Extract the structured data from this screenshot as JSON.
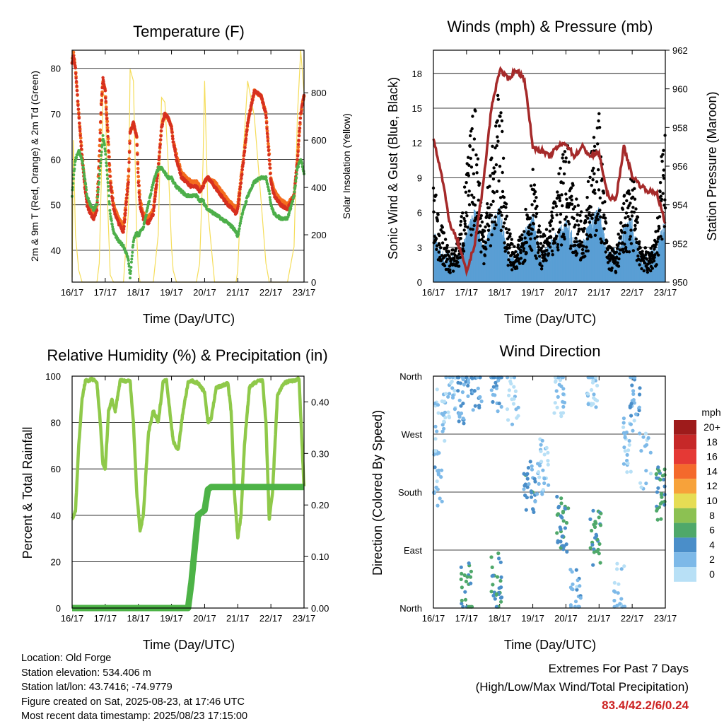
{
  "panels": {
    "temperature": {
      "title": "Temperature (F)",
      "ylabel_left": "2m & 9m T (Red, Orange) & 2m Td (Green)",
      "ylabel_right": "Solar Insolation (Yellow)",
      "xlabel": "Time (Day/UTC)"
    },
    "winds": {
      "title": "Winds (mph) & Pressure (mb)",
      "ylabel_left": "Sonic Wind & Gust (Blue, Black)",
      "ylabel_right": "Station Pressure (Maroon)",
      "xlabel": "Time (Day/UTC)"
    },
    "humidity": {
      "title": "Relative Humidity (%) & Precipitation (in)",
      "ylabel_left": "Percent & Total Rainfall",
      "xlabel": "Time (Day/UTC)"
    },
    "direction": {
      "title": "Wind Direction",
      "ylabel_left": "Direction (Colored By Speed)",
      "xlabel": "Time (Day/UTC)",
      "legend_title": "mph"
    }
  },
  "info": {
    "location": "Location: Old Forge",
    "elevation": "Station elevation: 534.406 m",
    "latlon": "Station lat/lon: 43.7416; -74.9779",
    "created": "Figure created on Sat, 2025-08-23, at 17:46 UTC",
    "recent": "Most recent data timestamp: 2025/08/23 17:15:00"
  },
  "extremes": {
    "line1": "Extremes For Past 7 Days",
    "line2": "(High/Low/Max Wind/Total Precipitation)",
    "values": "83.4/42.2/6/0.24"
  },
  "colors": {
    "temp2m": "#d7301f",
    "temp9m": "#f46d1e",
    "dewpoint": "#4daf4a",
    "solar": "#f5dd5a",
    "wind": "#5a9fd4",
    "gust": "#000000",
    "pressure": "#a52a2a",
    "rh": "#8fc94a",
    "precip": "#4db347"
  },
  "chart_data": [
    {
      "type": "line",
      "name": "temperature",
      "title": "Temperature (F)",
      "xlabel": "Time (Day/UTC)",
      "ylabel": "2m & 9m T (Red, Orange) & 2m Td (Green)",
      "y2label": "Solar Insolation (Yellow)",
      "ylim": [
        33,
        84
      ],
      "y2lim": [
        0,
        980
      ],
      "yticks": [
        40,
        50,
        60,
        70,
        80
      ],
      "y2ticks": [
        0,
        200,
        400,
        600,
        800
      ],
      "xticks": [
        "16/17",
        "17/17",
        "18/17",
        "19/17",
        "20/17",
        "21/17",
        "22/17",
        "23/17"
      ],
      "x": [
        0,
        0.04,
        0.1,
        0.2,
        0.3,
        0.38,
        0.45,
        0.55,
        0.65,
        0.75,
        0.82,
        0.88,
        0.93,
        1.0,
        1.08,
        1.15,
        1.25,
        1.4,
        1.55,
        1.7,
        1.75,
        1.85,
        1.95,
        2.0,
        2.05,
        2.15,
        2.3,
        2.45,
        2.6,
        2.7,
        2.8,
        2.9,
        3.0,
        3.05,
        3.15,
        3.3,
        3.45,
        3.6,
        3.75,
        3.85,
        3.95,
        4.0,
        4.1,
        4.3,
        4.5,
        4.7,
        4.85,
        4.95,
        5.0,
        5.1,
        5.3,
        5.5,
        5.7,
        5.85,
        5.95,
        6.0,
        6.1,
        6.3,
        6.5,
        6.7,
        6.8,
        6.9,
        7.0
      ],
      "series": [
        {
          "name": "2m T",
          "values": [
            81,
            83,
            80,
            70,
            60,
            54,
            50,
            48,
            47,
            49,
            60,
            72,
            78,
            75,
            65,
            55,
            49,
            46,
            44,
            55,
            66,
            68,
            65,
            55,
            50,
            47,
            46,
            48,
            58,
            67,
            70,
            69,
            67,
            64,
            60,
            56,
            55,
            54,
            54,
            53,
            54,
            55,
            56,
            54,
            52,
            50,
            49,
            48,
            49,
            55,
            68,
            75,
            74,
            70,
            60,
            55,
            52,
            50,
            49,
            52,
            60,
            70,
            74
          ]
        },
        {
          "name": "9m T",
          "values": [
            81.5,
            83.4,
            80,
            70,
            61,
            55,
            51,
            49,
            48,
            50,
            61,
            72,
            77,
            75,
            66,
            56,
            50,
            47,
            45,
            56,
            66,
            68,
            65,
            56,
            51,
            48,
            47,
            49,
            58,
            67,
            70,
            69,
            67,
            64,
            61,
            57,
            56,
            55,
            55,
            54,
            54,
            55,
            56,
            55,
            53,
            51,
            50,
            49,
            50,
            56,
            68,
            75,
            74,
            70,
            61,
            56,
            53,
            51,
            50,
            52,
            60,
            70,
            74
          ]
        },
        {
          "name": "2m Td",
          "values": [
            52,
            56,
            60,
            62,
            60,
            56,
            52,
            50,
            49,
            50,
            56,
            61,
            65,
            62,
            55,
            48,
            44,
            42,
            41,
            38,
            34,
            42,
            44,
            43,
            44,
            45,
            50,
            55,
            58,
            58,
            57,
            56,
            56,
            55,
            54,
            53,
            52,
            52,
            52,
            51,
            51,
            50,
            49,
            48,
            47,
            46,
            45,
            44,
            43,
            47,
            52,
            55,
            56,
            56,
            53,
            50,
            48,
            47,
            47,
            52,
            58,
            60,
            57
          ]
        },
        {
          "name": "Solar Insolation",
          "values": [
            20,
            600,
            200,
            50,
            0,
            0,
            0,
            0,
            0,
            0,
            80,
            420,
            800,
            780,
            300,
            30,
            0,
            0,
            0,
            300,
            900,
            850,
            200,
            50,
            0,
            0,
            0,
            0,
            200,
            780,
            760,
            500,
            150,
            50,
            0,
            0,
            0,
            0,
            0,
            80,
            500,
            850,
            300,
            0,
            0,
            0,
            0,
            0,
            50,
            400,
            850,
            700,
            350,
            80,
            0,
            0,
            0,
            0,
            0,
            150,
            700,
            980,
            800
          ]
        }
      ]
    },
    {
      "type": "scatter",
      "name": "winds",
      "title": "Winds (mph) & Pressure (mb)",
      "xlabel": "Time (Day/UTC)",
      "ylabel": "Sonic Wind & Gust (Blue, Black)",
      "y2label": "Station Pressure (Maroon)",
      "ylim": [
        0,
        20
      ],
      "y2lim": [
        950,
        962
      ],
      "yticks": [
        0,
        3,
        6,
        9,
        12,
        15,
        18
      ],
      "y2ticks": [
        950,
        952,
        954,
        956,
        958,
        960,
        962
      ],
      "xticks": [
        "16/17",
        "17/17",
        "18/17",
        "19/17",
        "20/17",
        "21/17",
        "22/17",
        "23/17"
      ],
      "x": [
        0,
        0.25,
        0.5,
        0.75,
        1.0,
        1.25,
        1.5,
        1.75,
        2.0,
        2.25,
        2.5,
        2.75,
        3.0,
        3.25,
        3.5,
        3.75,
        4.0,
        4.25,
        4.5,
        4.75,
        5.0,
        5.25,
        5.5,
        5.75,
        6.0,
        6.25,
        6.5,
        6.75,
        7.0
      ],
      "series": [
        {
          "name": "Sonic Wind",
          "values": [
            3,
            1.5,
            1,
            1,
            3,
            5,
            1.5,
            4,
            5,
            1.5,
            1,
            3,
            4.5,
            1,
            2,
            3,
            4,
            2.5,
            2,
            4.5,
            5,
            1.5,
            1.5,
            3.5,
            4,
            1,
            1,
            2,
            4
          ]
        },
        {
          "name": "Gust",
          "values": [
            7,
            4,
            2,
            3,
            8,
            13,
            4,
            9,
            14,
            4,
            2,
            5,
            8,
            3,
            4,
            7,
            11,
            6,
            5,
            9,
            12,
            3,
            2,
            6,
            8,
            3,
            2,
            4,
            13
          ]
        },
        {
          "name": "Station Pressure",
          "values": [
            957.5,
            955.5,
            953,
            952,
            950.5,
            952,
            955,
            959,
            961,
            960.5,
            961,
            960.5,
            957,
            956.8,
            956.5,
            957,
            957.2,
            956.5,
            957,
            956.5,
            956.7,
            954.5,
            954.2,
            957,
            955.5,
            955,
            954.7,
            954.6,
            953
          ]
        }
      ]
    },
    {
      "type": "line",
      "name": "humidity",
      "title": "Relative Humidity (%) & Precipitation (in)",
      "xlabel": "Time (Day/UTC)",
      "ylabel": "Percent & Total Rainfall",
      "ylim": [
        0,
        100
      ],
      "y2lim": [
        0,
        0.45
      ],
      "yticks": [
        0,
        20,
        40,
        60,
        80,
        100
      ],
      "y2ticks": [
        0.0,
        0.1,
        0.2,
        0.3,
        0.4
      ],
      "y2ticklabels": [
        "0.00",
        "0.10",
        "0.20",
        "0.30",
        "0.40"
      ],
      "xticks": [
        "16/17",
        "17/17",
        "18/17",
        "19/17",
        "20/17",
        "21/17",
        "22/17",
        "23/17"
      ],
      "x": [
        0,
        0.1,
        0.2,
        0.3,
        0.4,
        0.5,
        0.6,
        0.75,
        0.85,
        0.93,
        1.0,
        1.1,
        1.2,
        1.3,
        1.45,
        1.6,
        1.75,
        1.85,
        1.95,
        2.05,
        2.15,
        2.3,
        2.45,
        2.6,
        2.75,
        2.85,
        2.95,
        3.05,
        3.2,
        3.35,
        3.5,
        3.6,
        3.8,
        4.0,
        4.1,
        4.2,
        4.35,
        4.55,
        4.7,
        4.8,
        4.9,
        5.0,
        5.1,
        5.2,
        5.35,
        5.5,
        5.65,
        5.75,
        5.85,
        5.95,
        6.05,
        6.2,
        6.4,
        6.6,
        6.75,
        6.85,
        7.0
      ],
      "series": [
        {
          "name": "Relative Humidity",
          "values": [
            38,
            42,
            70,
            90,
            98,
            98,
            99,
            97,
            80,
            62,
            60,
            85,
            90,
            85,
            98,
            98,
            98,
            80,
            50,
            33,
            40,
            75,
            85,
            80,
            98,
            98,
            85,
            72,
            68,
            85,
            97,
            98,
            97,
            93,
            80,
            82,
            95,
            96,
            97,
            85,
            50,
            30,
            40,
            70,
            95,
            97,
            98,
            98,
            80,
            38,
            50,
            92,
            97,
            98,
            98,
            99,
            52
          ]
        },
        {
          "name": "Total Precipitation",
          "values": [
            0,
            0,
            0,
            0,
            0,
            0,
            0,
            0,
            0,
            0,
            0,
            0,
            0,
            0,
            0,
            0,
            0,
            0,
            0,
            0,
            0,
            0,
            0,
            0,
            0,
            0,
            0,
            0,
            0,
            0,
            0,
            0.05,
            0.18,
            0.19,
            0.23,
            0.235,
            0.235,
            0.235,
            0.235,
            0.235,
            0.235,
            0.235,
            0.235,
            0.235,
            0.235,
            0.235,
            0.235,
            0.235,
            0.235,
            0.235,
            0.235,
            0.235,
            0.235,
            0.235,
            0.235,
            0.235,
            0.235
          ]
        }
      ]
    },
    {
      "type": "scatter",
      "name": "direction",
      "title": "Wind Direction",
      "xlabel": "Time (Day/UTC)",
      "ylabel": "Direction (Colored By Speed)",
      "yticklabels": [
        "North",
        "East",
        "South",
        "West",
        "North"
      ],
      "yticks": [
        0,
        90,
        180,
        270,
        360
      ],
      "xticks": [
        "16/17",
        "17/17",
        "18/17",
        "19/17",
        "20/17",
        "21/17",
        "22/17",
        "23/17"
      ],
      "clusters": [
        {
          "x": 0.1,
          "dir": 200,
          "speed": 2,
          "n": 25
        },
        {
          "x": 0.2,
          "dir": 300,
          "speed": 1,
          "n": 20
        },
        {
          "x": 0.5,
          "dir": 340,
          "speed": 1,
          "n": 25
        },
        {
          "x": 0.9,
          "dir": 330,
          "speed": 3,
          "n": 30
        },
        {
          "x": 1.0,
          "dir": 30,
          "speed": 5,
          "n": 25
        },
        {
          "x": 1.3,
          "dir": 350,
          "speed": 3,
          "n": 25
        },
        {
          "x": 1.9,
          "dir": 40,
          "speed": 5,
          "n": 30
        },
        {
          "x": 1.9,
          "dir": 350,
          "speed": 3,
          "n": 25
        },
        {
          "x": 2.4,
          "dir": 330,
          "speed": 1,
          "n": 20
        },
        {
          "x": 2.9,
          "dir": 190,
          "speed": 4,
          "n": 30
        },
        {
          "x": 3.3,
          "dir": 220,
          "speed": 1,
          "n": 30
        },
        {
          "x": 3.9,
          "dir": 130,
          "speed": 5,
          "n": 35
        },
        {
          "x": 3.8,
          "dir": 340,
          "speed": 1,
          "n": 25
        },
        {
          "x": 4.3,
          "dir": 20,
          "speed": 2,
          "n": 25
        },
        {
          "x": 4.9,
          "dir": 110,
          "speed": 5,
          "n": 30
        },
        {
          "x": 4.8,
          "dir": 350,
          "speed": 1,
          "n": 25
        },
        {
          "x": 5.6,
          "dir": 30,
          "speed": 1,
          "n": 20
        },
        {
          "x": 5.9,
          "dir": 250,
          "speed": 1,
          "n": 25
        },
        {
          "x": 6.1,
          "dir": 340,
          "speed": 3,
          "n": 25
        },
        {
          "x": 6.4,
          "dir": 230,
          "speed": 1,
          "n": 15
        },
        {
          "x": 6.9,
          "dir": 180,
          "speed": 5,
          "n": 30
        }
      ],
      "legend": {
        "title": "mph",
        "labels": [
          "20+",
          "18",
          "16",
          "14",
          "12",
          "10",
          "8",
          "6",
          "4",
          "2",
          "0"
        ],
        "colors": [
          "#9e1b1b",
          "#c62828",
          "#e53935",
          "#f4692c",
          "#f7a23a",
          "#e6dd54",
          "#8cc152",
          "#4fa86a",
          "#4a8ec9",
          "#7db9e8",
          "#b8e0f6"
        ]
      }
    }
  ]
}
